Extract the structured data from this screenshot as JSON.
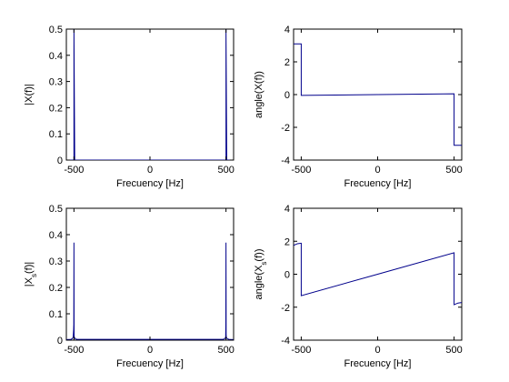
{
  "chart_data": [
    {
      "id": "mag_x",
      "type": "line",
      "xlabel": "Frecuency [Hz]",
      "ylabel": "|X(f)|",
      "xlim": [
        -550,
        550
      ],
      "ylim": [
        0,
        0.5
      ],
      "xticks": [
        -500,
        0,
        500
      ],
      "yticks": [
        0,
        0.1,
        0.2,
        0.3,
        0.4,
        0.5
      ],
      "ytick_labels": [
        "0",
        "0.1",
        "0.2",
        "0.3",
        "0.4",
        "0.5"
      ],
      "grid": false,
      "color": "#00008b",
      "series": [
        {
          "x": [
            -550,
            -505,
            -500,
            -500,
            -495,
            495,
            500,
            500,
            505,
            550
          ],
          "y": [
            0,
            0,
            0,
            0.5,
            0,
            0,
            0,
            0.5,
            0,
            0
          ]
        }
      ]
    },
    {
      "id": "angle_x",
      "type": "line",
      "xlabel": "Frecuency [Hz]",
      "ylabel": "angle(X(f))",
      "xlim": [
        -550,
        550
      ],
      "ylim": [
        -4,
        4
      ],
      "xticks": [
        -500,
        0,
        500
      ],
      "yticks": [
        -4,
        -2,
        0,
        2,
        4
      ],
      "ytick_labels": [
        "-4",
        "-2",
        "0",
        "2",
        "4"
      ],
      "grid": false,
      "color": "#00008b",
      "series": [
        {
          "x": [
            -550,
            -500,
            -500,
            0,
            500,
            500,
            550
          ],
          "y": [
            3.1,
            3.1,
            -0.05,
            0.0,
            0.05,
            -3.1,
            -3.1
          ]
        }
      ]
    },
    {
      "id": "mag_xs",
      "type": "line",
      "xlabel": "Frecuency [Hz]",
      "ylabel": "|X_s(f)|",
      "xlim": [
        -550,
        550
      ],
      "ylim": [
        0,
        0.5
      ],
      "xticks": [
        -500,
        0,
        500
      ],
      "yticks": [
        0,
        0.1,
        0.2,
        0.3,
        0.4,
        0.5
      ],
      "ytick_labels": [
        "0",
        "0.1",
        "0.2",
        "0.3",
        "0.4",
        "0.5"
      ],
      "grid": false,
      "color": "#00008b",
      "series": [
        {
          "x": [
            -550,
            -520,
            -510,
            -505,
            -502,
            -501,
            -500,
            -499,
            -498,
            -495,
            -490,
            -480,
            480,
            490,
            495,
            498,
            499,
            500,
            501,
            502,
            505,
            510,
            520,
            550
          ],
          "y": [
            0.002,
            0.003,
            0.006,
            0.012,
            0.04,
            0.06,
            0.37,
            0.02,
            0.012,
            0.008,
            0.005,
            0.003,
            0.003,
            0.005,
            0.008,
            0.012,
            0.06,
            0.37,
            0.02,
            0.012,
            0.008,
            0.005,
            0.003,
            0.002
          ]
        }
      ]
    },
    {
      "id": "angle_xs",
      "type": "line",
      "xlabel": "Frecuency [Hz]",
      "ylabel": "angle(X_s(f))",
      "xlim": [
        -550,
        550
      ],
      "ylim": [
        -4,
        4
      ],
      "xticks": [
        -500,
        0,
        500
      ],
      "yticks": [
        -4,
        -2,
        0,
        2,
        4
      ],
      "ytick_labels": [
        "-4",
        "-2",
        "0",
        "2",
        "4"
      ],
      "grid": false,
      "color": "#00008b",
      "series": [
        {
          "x": [
            -550,
            -525,
            -500,
            -500,
            0,
            500,
            500,
            525,
            550
          ],
          "y": [
            1.75,
            1.85,
            1.88,
            -1.3,
            0.0,
            1.3,
            -1.85,
            -1.75,
            -1.72
          ]
        }
      ]
    }
  ]
}
